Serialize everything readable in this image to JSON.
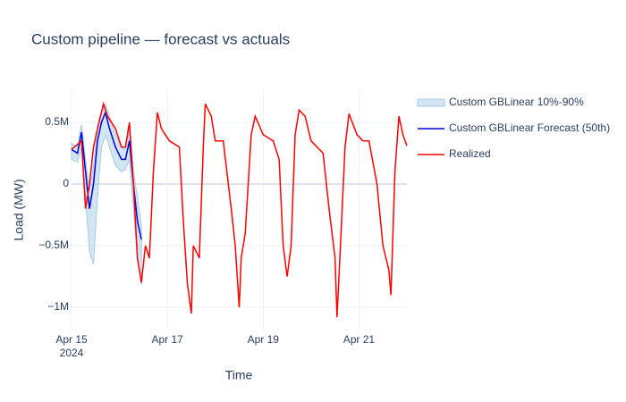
{
  "chart_data": {
    "type": "line",
    "title": "Custom pipeline — forecast vs actuals",
    "xlabel": "Time",
    "ylabel": "Load (MW)",
    "xlim": [
      "2024-04-15T00:00",
      "2024-04-22T00:00"
    ],
    "xticks": [
      {
        "value": "2024-04-15T00:00",
        "label": "Apr 15\n2024"
      },
      {
        "value": "2024-04-17T00:00",
        "label": "Apr 17"
      },
      {
        "value": "2024-04-19T00:00",
        "label": "Apr 19"
      },
      {
        "value": "2024-04-21T00:00",
        "label": "Apr 21"
      }
    ],
    "ylim": [
      -1188000,
      768000
    ],
    "yticks": [
      {
        "value": 500000,
        "label": "0.5M"
      },
      0,
      {
        "value": -500000,
        "label": "−0.5M"
      },
      {
        "value": -1000000,
        "label": "−1M"
      }
    ],
    "grid": true,
    "legend": "right",
    "band": {
      "name": "Custom GBLinear 10%-90%",
      "color": "#a6cbe6",
      "x": [
        "2024-04-15T00:00",
        "2024-04-15T03:00",
        "2024-04-15T05:00",
        "2024-04-15T07:00",
        "2024-04-15T09:00",
        "2024-04-15T11:00",
        "2024-04-15T13:00",
        "2024-04-15T15:00",
        "2024-04-15T17:00",
        "2024-04-15T19:00",
        "2024-04-15T22:00",
        "2024-04-16T01:00",
        "2024-04-16T03:00",
        "2024-04-16T05:00",
        "2024-04-16T07:00",
        "2024-04-16T09:00",
        "2024-04-16T11:00"
      ],
      "lower": [
        200000,
        180000,
        300000,
        -100000,
        -550000,
        -650000,
        -100000,
        300000,
        400000,
        300000,
        150000,
        100000,
        120000,
        200000,
        -200000,
        -600000,
        -820000
      ],
      "upper": [
        330000,
        300000,
        480000,
        200000,
        -50000,
        150000,
        450000,
        600000,
        650000,
        550000,
        400000,
        300000,
        280000,
        450000,
        100000,
        -100000,
        -350000
      ]
    },
    "series": [
      {
        "name": "Custom GBLinear Forecast (50th)",
        "color": "#0000dd",
        "x": [
          "2024-04-15T00:00",
          "2024-04-15T03:00",
          "2024-04-15T05:00",
          "2024-04-15T07:00",
          "2024-04-15T09:00",
          "2024-04-15T11:00",
          "2024-04-15T13:00",
          "2024-04-15T15:00",
          "2024-04-15T17:00",
          "2024-04-15T19:00",
          "2024-04-15T22:00",
          "2024-04-16T01:00",
          "2024-04-16T03:00",
          "2024-04-16T05:00",
          "2024-04-16T07:00",
          "2024-04-16T09:00",
          "2024-04-16T11:00"
        ],
        "values": [
          280000,
          250000,
          420000,
          100000,
          -200000,
          0,
          350000,
          500000,
          580000,
          450000,
          300000,
          200000,
          200000,
          350000,
          0,
          -300000,
          -450000
        ]
      },
      {
        "name": "Realized",
        "color": "#ff0000",
        "x": [
          "2024-04-15T00:00",
          "2024-04-15T05:00",
          "2024-04-15T07:00",
          "2024-04-15T09:00",
          "2024-04-15T11:00",
          "2024-04-15T13:00",
          "2024-04-15T16:00",
          "2024-04-15T18:00",
          "2024-04-15T22:00",
          "2024-04-16T01:00",
          "2024-04-16T03:00",
          "2024-04-16T05:00",
          "2024-04-16T07:00",
          "2024-04-16T09:00",
          "2024-04-16T11:00",
          "2024-04-16T13:00",
          "2024-04-16T15:00",
          "2024-04-16T17:00",
          "2024-04-16T19:00",
          "2024-04-16T21:00",
          "2024-04-17T01:00",
          "2024-04-17T06:00",
          "2024-04-17T08:00",
          "2024-04-17T10:00",
          "2024-04-17T12:00",
          "2024-04-17T13:00",
          "2024-04-17T16:00",
          "2024-04-17T18:00",
          "2024-04-17T19:00",
          "2024-04-17T22:00",
          "2024-04-18T00:00",
          "2024-04-18T04:00",
          "2024-04-18T08:00",
          "2024-04-18T10:00",
          "2024-04-18T12:00",
          "2024-04-18T13:00",
          "2024-04-18T15:00",
          "2024-04-18T18:00",
          "2024-04-18T20:00",
          "2024-04-19T00:00",
          "2024-04-19T05:00",
          "2024-04-19T08:00",
          "2024-04-19T10:00",
          "2024-04-19T12:00",
          "2024-04-19T14:00",
          "2024-04-19T16:00",
          "2024-04-19T18:00",
          "2024-04-19T21:00",
          "2024-04-20T00:00",
          "2024-04-20T06:00",
          "2024-04-20T09:00",
          "2024-04-20T12:00",
          "2024-04-20T13:00",
          "2024-04-20T15:00",
          "2024-04-20T17:00",
          "2024-04-20T19:00",
          "2024-04-20T23:00",
          "2024-04-21T02:00",
          "2024-04-21T05:00",
          "2024-04-21T09:00",
          "2024-04-21T12:00",
          "2024-04-21T15:00",
          "2024-04-21T16:00",
          "2024-04-21T18:00",
          "2024-04-21T20:00",
          "2024-04-21T22:00",
          "2024-04-22T00:00"
        ],
        "values": [
          280000,
          350000,
          -200000,
          0,
          300000,
          450000,
          650000,
          550000,
          450000,
          300000,
          300000,
          500000,
          0,
          -600000,
          -800000,
          -500000,
          -600000,
          100000,
          580000,
          450000,
          350000,
          300000,
          -300000,
          -800000,
          -1050000,
          -500000,
          -600000,
          300000,
          650000,
          550000,
          350000,
          350000,
          -200000,
          -500000,
          -1000000,
          -600000,
          -400000,
          400000,
          550000,
          400000,
          350000,
          200000,
          -500000,
          -750000,
          -500000,
          400000,
          600000,
          550000,
          350000,
          250000,
          -200000,
          -600000,
          -1080000,
          -400000,
          300000,
          570000,
          400000,
          350000,
          350000,
          0,
          -500000,
          -700000,
          -900000,
          100000,
          550000,
          400000,
          310000
        ]
      }
    ]
  }
}
